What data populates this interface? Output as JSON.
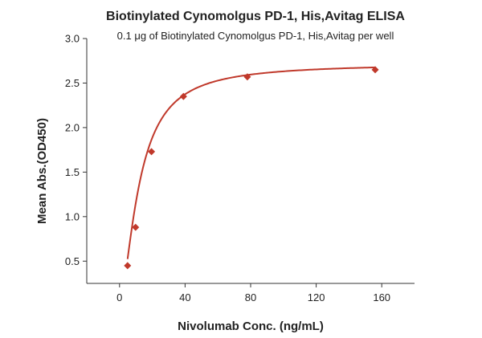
{
  "chart_data": {
    "type": "scatter",
    "title": "Biotinylated Cynomolgus PD-1, His,Avitag ELISA",
    "subtitle": "0.1 μg of Biotinylated Cynomolgus PD-1, His,Avitag per well",
    "xlabel": "Nivolumab Conc. (ng/mL)",
    "ylabel": "Mean Abs.(OD450)",
    "xlim": [
      -20,
      180
    ],
    "ylim": [
      0.25,
      3.0
    ],
    "xticks": [
      0,
      40,
      80,
      120,
      160
    ],
    "xtick_labels": [
      "0",
      "40",
      "80",
      "120",
      "160"
    ],
    "yticks": [
      0.5,
      1.0,
      1.5,
      2.0,
      2.5,
      3.0
    ],
    "ytick_labels": [
      "0.5",
      "1.0",
      "1.5",
      "2.0",
      "2.5",
      "3.0"
    ],
    "grid": false,
    "legend": "none",
    "series": [
      {
        "color": "#c0392b",
        "marker": "diamond",
        "x": [
          4.9,
          9.8,
          19.5,
          39,
          78,
          156
        ],
        "y": [
          0.45,
          0.88,
          1.73,
          2.35,
          2.57,
          2.65
        ]
      }
    ],
    "fit": {
      "type": "4PL",
      "color": "#c0392b",
      "bottom": 0,
      "top": 2.72,
      "ec50": 12,
      "hill": 1.6
    }
  }
}
